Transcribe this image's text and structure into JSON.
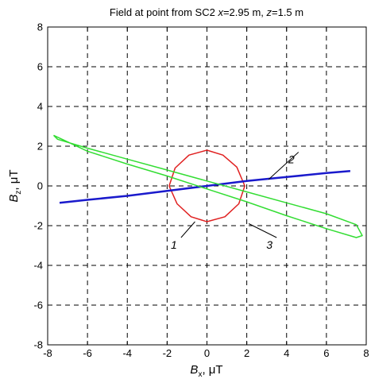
{
  "chart_data": {
    "type": "line",
    "title": {
      "prefix": "Field at point from SC2 ",
      "x_var": "x",
      "x_val": "=2.95 m, ",
      "z_var": "z",
      "z_val": "=1.5 m"
    },
    "xlabel": {
      "main": "B",
      "sub": "x",
      "unit": ", μT"
    },
    "ylabel": {
      "main": "B",
      "sub": "z",
      "unit": ", μT"
    },
    "xlim": [
      -8,
      8
    ],
    "ylim": [
      -8,
      8
    ],
    "xticks": [
      -8,
      -6,
      -4,
      -2,
      0,
      2,
      4,
      6,
      8
    ],
    "yticks": [
      -8,
      -6,
      -4,
      -2,
      0,
      2,
      4,
      6,
      8
    ],
    "grid": true,
    "series": [
      {
        "name": "1",
        "color": "#e02020",
        "x": [
          0.0,
          0.8,
          1.5,
          1.9,
          1.6,
          0.9,
          0.0,
          -0.8,
          -1.5,
          -1.9,
          -1.6,
          -0.9,
          0.0
        ],
        "y": [
          1.8,
          1.55,
          0.95,
          0.0,
          -0.9,
          -1.55,
          -1.8,
          -1.55,
          -0.9,
          0.0,
          0.9,
          1.55,
          1.8
        ]
      },
      {
        "name": "2",
        "color": "#1a1acc",
        "x": [
          -7.4,
          -6.0,
          -4.0,
          -2.0,
          0.0,
          2.0,
          4.0,
          6.0,
          7.2
        ],
        "y": [
          -0.85,
          -0.7,
          -0.5,
          -0.25,
          0.0,
          0.25,
          0.45,
          0.65,
          0.75
        ]
      },
      {
        "name": "3",
        "color": "#33dd33",
        "x": [
          -7.7,
          -7.5,
          -6.0,
          -4.0,
          -2.0,
          0.0,
          2.0,
          4.0,
          6.0,
          7.5,
          7.8,
          7.5,
          6.0,
          4.0,
          2.0,
          0.0,
          -2.0,
          -4.0,
          -6.0,
          -7.7
        ],
        "y": [
          2.55,
          2.35,
          1.9,
          1.35,
          0.8,
          0.25,
          -0.3,
          -0.85,
          -1.4,
          -1.95,
          -2.5,
          -2.6,
          -2.15,
          -1.5,
          -0.8,
          -0.15,
          0.5,
          1.1,
          1.75,
          2.55
        ]
      }
    ],
    "annotations": [
      {
        "text": "1",
        "label_x": -1.5,
        "label_y": -3.0,
        "point_x": -0.6,
        "point_y": -1.8
      },
      {
        "text": "2",
        "label_x": 4.4,
        "label_y": 1.3,
        "point_x": 3.1,
        "point_y": 0.33
      },
      {
        "text": "3",
        "label_x": 3.3,
        "label_y": -3.0,
        "point_x": 2.1,
        "point_y": -1.9
      }
    ]
  }
}
